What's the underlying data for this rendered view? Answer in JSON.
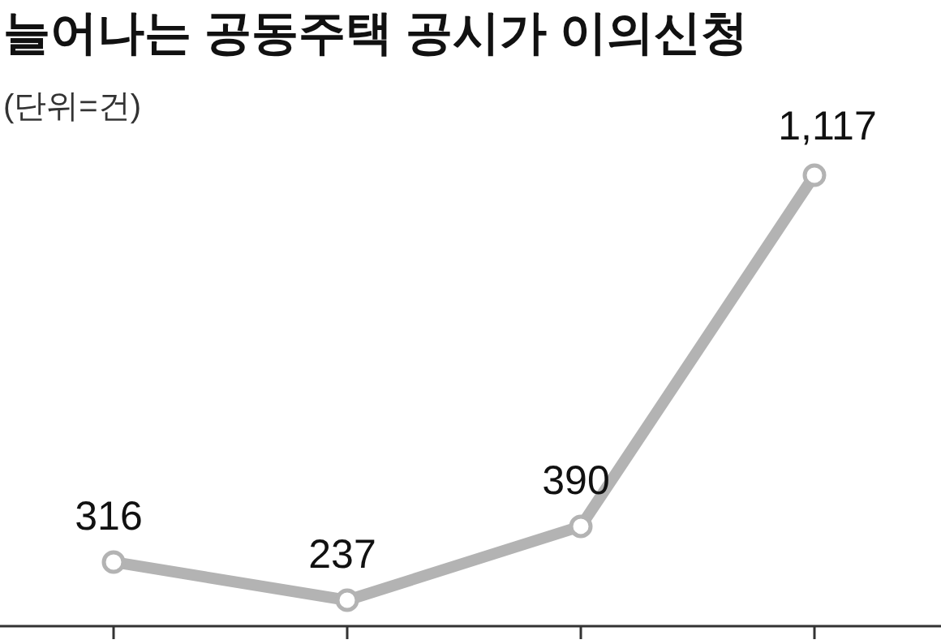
{
  "chart_data": {
    "type": "line",
    "title": "늘어나는 공동주택 공시가 이의신청",
    "subtitle": "(단위=건)",
    "categories": [
      null,
      null,
      null,
      null
    ],
    "series": [
      {
        "color": "#b3b3b3",
        "values": [
          316,
          237,
          390,
          1117
        ],
        "value_labels": [
          "316",
          "237",
          "390",
          "1,117"
        ]
      }
    ],
    "marker": "circle",
    "line_style": "solid"
  }
}
